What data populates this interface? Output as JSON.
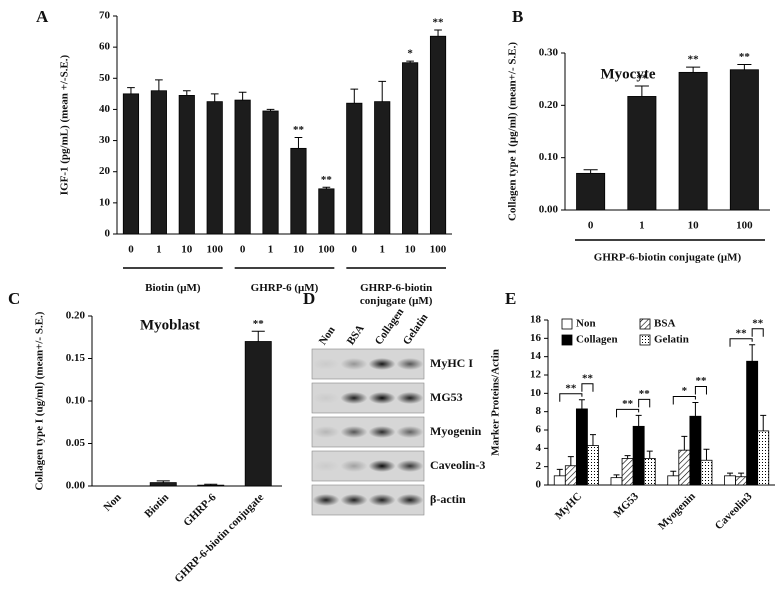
{
  "chart_data": [
    {
      "type": "bar",
      "label": "A",
      "ylabel": "IGF-1 (pg/mL) (mean +/-S.E.)",
      "categories": [
        "0",
        "1",
        "10",
        "100",
        "0",
        "1",
        "10",
        "100",
        "0",
        "1",
        "10",
        "100"
      ],
      "groups": [
        "Biotin (μM)",
        "GHRP-6 (μM)",
        "GHRP-6-biotin conjugate (μM)"
      ],
      "values": [
        45,
        46,
        44.5,
        42.5,
        43,
        39.5,
        27.5,
        14.5,
        42,
        42.5,
        55,
        63.5
      ],
      "errors": [
        2,
        3.5,
        1.5,
        2.5,
        2.5,
        0.5,
        3.5,
        0.5,
        4.5,
        6.5,
        0.5,
        2
      ],
      "significance": [
        null,
        null,
        null,
        null,
        null,
        null,
        "**",
        "**",
        null,
        null,
        "*",
        "**"
      ],
      "color": "#1c1c1c",
      "ylim": [
        0,
        70
      ],
      "yticks": [
        0,
        10,
        20,
        30,
        40,
        50,
        60,
        70
      ]
    },
    {
      "type": "bar",
      "label": "B",
      "title": "Myocyte",
      "ylabel": "Collagen type I (μg/ml) (mean+/- S.E.)",
      "xlabel": "GHRP-6-biotin conjugate (μM)",
      "categories": [
        "0",
        "1",
        "10",
        "100"
      ],
      "values": [
        0.07,
        0.217,
        0.263,
        0.268
      ],
      "errors": [
        0.007,
        0.02,
        0.01,
        0.01
      ],
      "significance": [
        null,
        "**",
        "**",
        "**"
      ],
      "color": "#1c1c1c",
      "ylim": [
        0,
        0.3
      ],
      "yticks": [
        {
          "value": 0,
          "label": "0.00"
        },
        {
          "value": 0.1,
          "label": "0.10"
        },
        {
          "value": 0.2,
          "label": "0.20"
        },
        {
          "value": 0.3,
          "label": "0.30"
        }
      ]
    },
    {
      "type": "bar",
      "label": "C",
      "title": "Myoblast",
      "ylabel": "Collagen type I (ug/ml) (mean+/- S.E.)",
      "categories": [
        "Non",
        "Biotin",
        "GHRP-6",
        "GHRP-6-biotin conjugate"
      ],
      "rotate_labels": true,
      "values": [
        0,
        0.004,
        0.001,
        0.17
      ],
      "errors": [
        0,
        0.002,
        0.001,
        0.012
      ],
      "significance": [
        null,
        null,
        null,
        "**"
      ],
      "color": "#1c1c1c",
      "ylim": [
        0,
        0.2
      ],
      "yticks": [
        {
          "value": 0,
          "label": "0.00"
        },
        {
          "value": 0.05,
          "label": "0.05"
        },
        {
          "value": 0.1,
          "label": "0.10"
        },
        {
          "value": 0.15,
          "label": "0.15"
        },
        {
          "value": 0.2,
          "label": "0.20"
        }
      ]
    },
    {
      "type": "bar",
      "label": "E",
      "ylabel": "Marker Proteins/Actin",
      "categories": [
        "MyHC",
        "MG53",
        "Myogenin",
        "Caveolin3"
      ],
      "rotate_labels": true,
      "series": [
        {
          "name": "Non",
          "color": "#ffffff",
          "values": [
            1.0,
            0.8,
            1.0,
            1.0
          ],
          "errors": [
            0.7,
            0.3,
            0.5,
            0.3
          ]
        },
        {
          "name": "BSA",
          "color": "#ffffff",
          "pattern": "hatch",
          "values": [
            2.1,
            2.9,
            3.8,
            0.9
          ],
          "errors": [
            1.0,
            0.3,
            1.5,
            0.4
          ]
        },
        {
          "name": "Collagen",
          "color": "#000000",
          "values": [
            8.3,
            6.4,
            7.5,
            13.5
          ],
          "errors": [
            1.0,
            1.2,
            1.5,
            1.8
          ]
        },
        {
          "name": "Gelatin",
          "color": "#ffffff",
          "pattern": "dots",
          "values": [
            4.3,
            2.9,
            2.7,
            5.9
          ],
          "errors": [
            1.2,
            0.8,
            1.2,
            1.7
          ]
        }
      ],
      "brackets": [
        [
          "**",
          "**"
        ],
        [
          "**",
          "**"
        ],
        [
          "*",
          "**"
        ],
        [
          "**",
          "**"
        ]
      ],
      "ylim": [
        0,
        18
      ],
      "yticks": [
        0,
        2,
        4,
        6,
        8,
        10,
        12,
        14,
        16,
        18
      ],
      "legend": "top"
    }
  ],
  "blot": {
    "label": "D",
    "lanes": [
      "Non",
      "BSA",
      "Collagen",
      "Gelatin"
    ],
    "bands": [
      "MyHC I",
      "MG53",
      "Myogenin",
      "Caveolin-3",
      "β-actin"
    ]
  }
}
